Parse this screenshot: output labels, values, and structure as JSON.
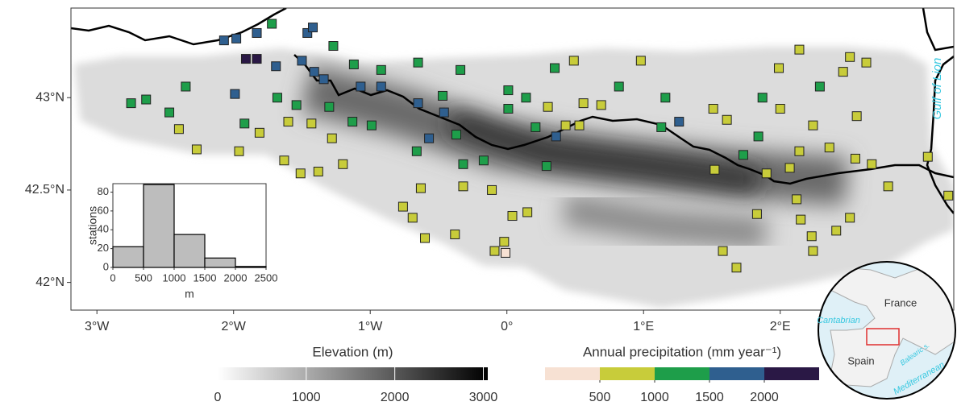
{
  "chart_data": {
    "type": "station-map",
    "xlim": [
      -3.19,
      3.27
    ],
    "ylim": [
      41.85,
      43.485
    ],
    "xticks": [
      {
        "value": -3,
        "label": "3°W"
      },
      {
        "value": -2,
        "label": "2°W"
      },
      {
        "value": -1,
        "label": "1°W"
      },
      {
        "value": 0,
        "label": "0°"
      },
      {
        "value": 1,
        "label": "1°E"
      },
      {
        "value": 2,
        "label": "2°E"
      }
    ],
    "yticks": [
      {
        "value": 42,
        "label": "42°N"
      },
      {
        "value": 42.5,
        "label": "42.5°N"
      },
      {
        "value": 43,
        "label": "43°N"
      }
    ],
    "sea_label": "Gulf of Lion",
    "series": [
      {
        "color": "#f7e1d3",
        "x": [
          -0.01
        ],
        "y": [
          42.16
        ]
      },
      {
        "color": "#c8cc3a",
        "x": [
          0.49,
          0.98,
          0.3,
          0.56,
          0.53,
          -2.4,
          -2.27,
          -1.96,
          -1.81,
          -1.6,
          -1.43,
          -1.28,
          -1.63,
          -1.51,
          -1.38,
          -1.2,
          -0.63,
          -0.76,
          -0.69,
          -0.32,
          -0.11,
          0.04,
          0.15,
          -0.6,
          -0.38,
          -0.09,
          -0.02,
          1.51,
          1.61,
          2.0,
          2.24,
          2.14,
          1.52,
          1.9,
          2.36,
          2.56,
          2.14,
          1.99,
          2.46,
          2.51,
          2.63,
          2.55,
          2.67,
          2.79,
          3.23,
          3.08,
          2.12,
          2.15,
          2.23,
          2.41,
          2.51,
          1.83,
          1.58,
          1.68,
          2.24,
          0.43,
          0.69,
          2.07
        ],
        "y": [
          43.2,
          43.2,
          42.95,
          42.97,
          42.85,
          42.83,
          42.72,
          42.71,
          42.81,
          42.87,
          42.86,
          42.78,
          42.66,
          42.59,
          42.6,
          42.64,
          42.51,
          42.41,
          42.35,
          42.52,
          42.5,
          42.36,
          42.38,
          42.24,
          42.26,
          42.17,
          42.22,
          42.94,
          42.88,
          42.94,
          42.85,
          42.71,
          42.61,
          42.59,
          42.73,
          42.9,
          43.26,
          43.16,
          43.14,
          43.22,
          43.19,
          42.67,
          42.64,
          42.52,
          42.47,
          42.68,
          42.45,
          42.34,
          42.25,
          42.28,
          42.35,
          42.37,
          42.17,
          42.08,
          42.17,
          42.85,
          42.96,
          42.62
        ]
      },
      {
        "color": "#1e9e4a",
        "x": [
          -1.72,
          -1.27,
          -1.12,
          -0.92,
          -0.65,
          -0.34,
          -2.35,
          -2.75,
          -2.64,
          -1.68,
          -1.54,
          -1.3,
          -1.13,
          -0.99,
          -0.47,
          0.01,
          0.01,
          0.14,
          0.21,
          0.35,
          0.82,
          1.16,
          1.13,
          -0.37,
          -0.66,
          -0.32,
          -0.17,
          0.29,
          -2.47,
          -1.92,
          1.87,
          1.84,
          1.73,
          2.29
        ],
        "y": [
          43.4,
          43.28,
          43.18,
          43.15,
          43.19,
          43.15,
          43.06,
          42.97,
          42.99,
          43.0,
          42.96,
          42.95,
          42.87,
          42.85,
          43.01,
          43.04,
          42.94,
          43.0,
          42.84,
          43.16,
          43.06,
          43.0,
          42.84,
          42.8,
          42.71,
          42.64,
          42.66,
          42.63,
          42.92,
          42.86,
          43.0,
          42.79,
          42.69,
          43.06
        ]
      },
      {
        "color": "#2f5f8f",
        "x": [
          -1.46,
          -1.42,
          -2.07,
          -1.98,
          -1.83,
          -1.69,
          -1.5,
          -1.41,
          -1.34,
          -1.99,
          -1.07,
          -0.92,
          -0.65,
          -0.46,
          1.26,
          0.36,
          -0.57
        ],
        "y": [
          43.35,
          43.38,
          43.31,
          43.32,
          43.35,
          43.17,
          43.2,
          43.14,
          43.1,
          43.02,
          43.06,
          43.06,
          42.97,
          42.92,
          42.87,
          42.79,
          42.78
        ]
      },
      {
        "color": "#2a1845",
        "x": [
          -1.91,
          -1.83
        ],
        "y": [
          43.21,
          43.21
        ]
      }
    ],
    "histogram": {
      "type": "histogram",
      "xlabel": "m",
      "ylabel": "stations",
      "color": "#bdbdbd",
      "bins": [
        0,
        500,
        1000,
        1500,
        2000,
        2500
      ],
      "counts": [
        22,
        88,
        35,
        10,
        1
      ],
      "xlim": [
        0,
        2500
      ],
      "ylim": [
        0,
        89
      ],
      "xticks": [
        0,
        500,
        1000,
        1500,
        2000,
        2500
      ],
      "yticks": [
        0,
        20,
        40,
        60,
        80
      ]
    },
    "elevation_colorbar": {
      "title": "Elevation (m)",
      "lim": [
        0,
        3050
      ],
      "ticks": [
        0,
        1000,
        2000,
        3000
      ],
      "colors": [
        "#ffffff",
        "#000000"
      ]
    },
    "precip_colorbar": {
      "title": "Annual precipitation (mm year⁻¹)",
      "bins": [
        0,
        500,
        1000,
        1500,
        2000,
        2500
      ],
      "colors": [
        "#f7e1d3",
        "#c8cc3a",
        "#1e9e4a",
        "#2f5f8f",
        "#2a1845"
      ],
      "ticks": [
        500,
        1000,
        1500,
        2000
      ]
    },
    "inset": {
      "labels": [
        "France",
        "Spain",
        "Cantabrian",
        "Balearic s.",
        "Mediterranean"
      ]
    }
  }
}
